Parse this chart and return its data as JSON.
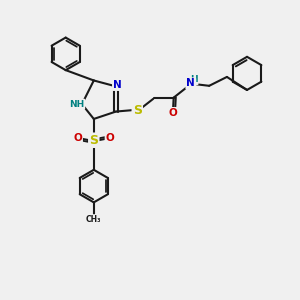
{
  "bg_color": "#f0f0f0",
  "bond_color": "#1a1a1a",
  "N_color": "#0000cc",
  "NH_color": "#008080",
  "S_color": "#bbbb00",
  "O_color": "#cc0000",
  "C_color": "#1a1a1a",
  "figsize": [
    3.0,
    3.0
  ],
  "dpi": 100,
  "xlim": [
    0,
    10
  ],
  "ylim": [
    0,
    10
  ]
}
